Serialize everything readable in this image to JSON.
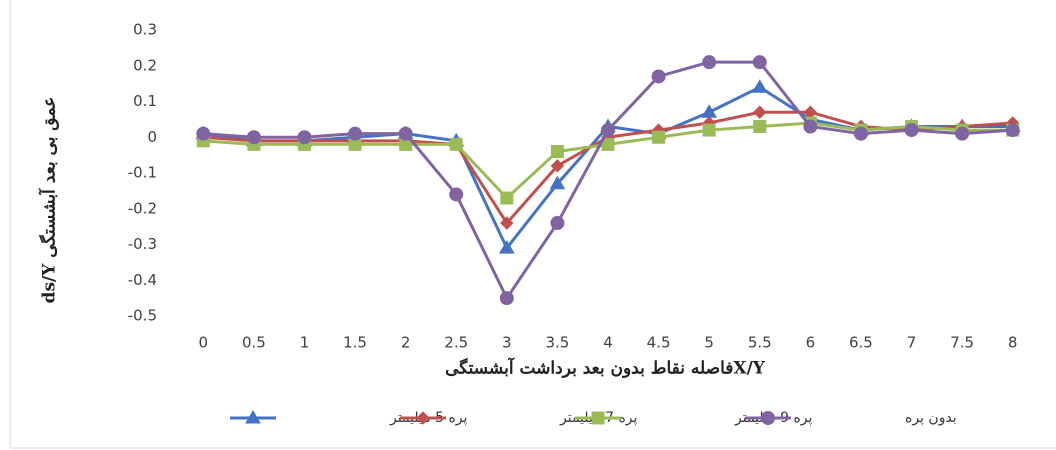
{
  "chart_data": {
    "type": "line",
    "x_label": "X/Yفاصله نقاط بدون بعد برداشت آبشستگی",
    "y_label": "ds/Y عمق بی بعد آبشستگی",
    "categories": [
      "0",
      "0.5",
      "1",
      "1.5",
      "2",
      "2.5",
      "3",
      "3.5",
      "4",
      "4.5",
      "5",
      "5.5",
      "6",
      "6.5",
      "7",
      "7.5",
      "8"
    ],
    "series": [
      {
        "name": "پره 5 میلیمتر",
        "color": "#4472c4",
        "marker": "triangle",
        "values": [
          0.01,
          -0.01,
          -0.01,
          0.0,
          0.01,
          -0.01,
          -0.31,
          -0.13,
          0.03,
          0.01,
          0.07,
          0.14,
          0.05,
          0.02,
          0.03,
          0.03,
          0.03
        ]
      },
      {
        "name": "پره 7 میلیمتر",
        "color": "#c0504d",
        "marker": "diamond",
        "values": [
          0.0,
          -0.01,
          -0.01,
          -0.01,
          -0.01,
          -0.02,
          -0.24,
          -0.08,
          0.0,
          0.02,
          0.04,
          0.07,
          0.07,
          0.03,
          0.02,
          0.03,
          0.04
        ]
      },
      {
        "name": "پره 9 میلیمتر",
        "color": "#9bbb59",
        "marker": "square",
        "values": [
          -0.01,
          -0.02,
          -0.02,
          -0.02,
          -0.02,
          -0.02,
          -0.17,
          -0.04,
          -0.02,
          0.0,
          0.02,
          0.03,
          0.04,
          0.02,
          0.03,
          0.02,
          0.02
        ]
      },
      {
        "name": "بدون پره",
        "color": "#8064a2",
        "marker": "circle",
        "values": [
          0.01,
          0.0,
          0.0,
          0.01,
          0.01,
          -0.16,
          -0.45,
          -0.24,
          0.02,
          0.17,
          0.21,
          0.21,
          0.03,
          0.01,
          0.02,
          0.01,
          0.02
        ]
      }
    ],
    "ylim": [
      -0.5,
      0.3
    ],
    "yticks": [
      -0.5,
      -0.4,
      -0.3,
      -0.2,
      -0.1,
      0,
      0.1,
      0.2,
      0.3
    ],
    "grid": false
  }
}
